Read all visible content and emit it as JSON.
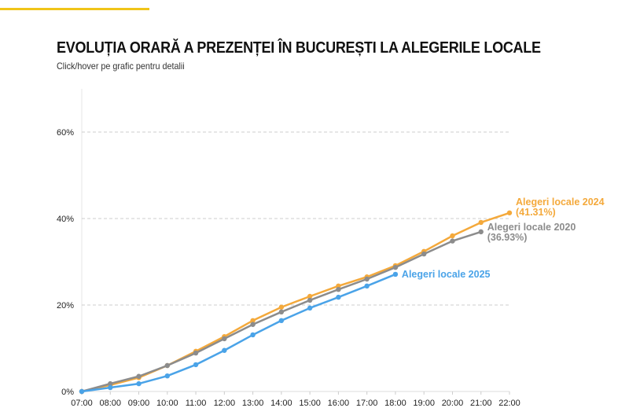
{
  "title": "EVOLUȚIA ORARĂ A PREZENȚEI ÎN BUCUREȘTI LA ALEGERILE LOCALE",
  "subtitle": "Click/hover pe grafic pentru detalii",
  "chart_data": {
    "type": "line",
    "title": "EVOLUȚIA ORARĂ A PREZENȚEI ÎN BUCUREȘTI LA ALEGERILE LOCALE",
    "xlabel": "",
    "ylabel": "",
    "categories": [
      "07:00",
      "08:00",
      "09:00",
      "10:00",
      "11:00",
      "12:00",
      "13:00",
      "14:00",
      "15:00",
      "16:00",
      "17:00",
      "18:00",
      "19:00",
      "20:00",
      "21:00",
      "22:00"
    ],
    "yticks": [
      "0%",
      "20%",
      "40%",
      "60%"
    ],
    "ylim": [
      0,
      70
    ],
    "grid": "horizontal dashed",
    "legend": "inline end labels",
    "series": [
      {
        "name": "Alegeri locale 2024",
        "end_label": "(41.31%)",
        "color": "#f4a93b",
        "values": [
          0,
          1.5,
          3.2,
          6.0,
          9.3,
          12.7,
          16.4,
          19.5,
          22.0,
          24.4,
          26.5,
          29.1,
          32.4,
          36.0,
          39.1,
          41.31
        ]
      },
      {
        "name": "Alegeri locale 2020",
        "end_label": "(36.93%)",
        "color": "#8c8c8c",
        "values": [
          0,
          1.8,
          3.5,
          6.0,
          8.9,
          12.2,
          15.5,
          18.4,
          21.1,
          23.6,
          26.0,
          28.7,
          31.8,
          34.8,
          36.93,
          null
        ]
      },
      {
        "name": "Alegeri locale 2025",
        "end_label": "",
        "color": "#4aa3e8",
        "values": [
          0,
          0.9,
          1.8,
          3.6,
          6.2,
          9.5,
          13.1,
          16.4,
          19.3,
          21.8,
          24.4,
          27.1,
          null,
          null,
          null,
          null
        ]
      }
    ]
  }
}
